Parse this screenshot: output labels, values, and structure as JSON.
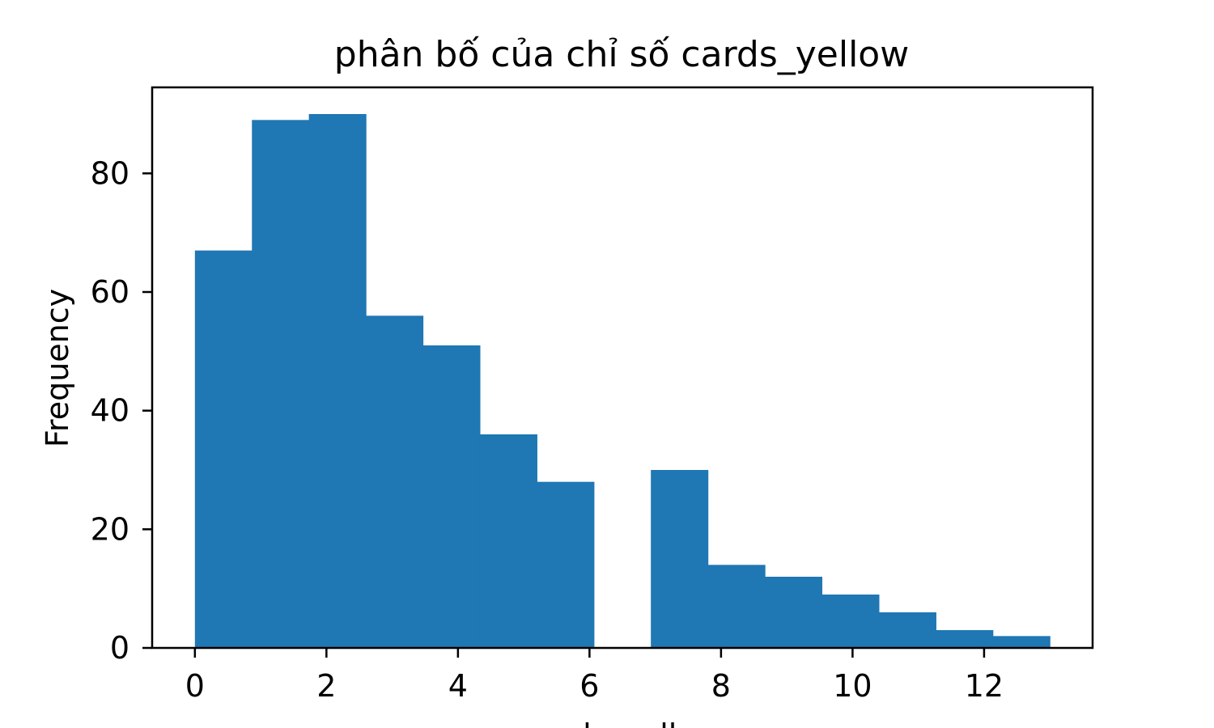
{
  "chart_data": {
    "type": "bar",
    "title": "phân bố của chỉ số cards_yellow",
    "xlabel": "cards_yellow",
    "ylabel": "Frequency",
    "bin_edges": [
      0,
      0.867,
      1.733,
      2.6,
      3.467,
      4.333,
      5.2,
      6.067,
      6.933,
      7.8,
      8.667,
      9.533,
      10.4,
      11.267,
      12.133,
      13
    ],
    "values": [
      67,
      89,
      90,
      56,
      51,
      36,
      28,
      0,
      30,
      14,
      12,
      9,
      6,
      3,
      2
    ],
    "xlim": [
      -0.65,
      13.65
    ],
    "ylim": [
      0,
      94.5
    ],
    "x_ticks": [
      0,
      2,
      4,
      6,
      8,
      10,
      12
    ],
    "x_tick_labels": [
      "0",
      "2",
      "4",
      "6",
      "8",
      "10",
      "12"
    ],
    "y_ticks": [
      0,
      20,
      40,
      60,
      80
    ],
    "y_tick_labels": [
      "0",
      "20",
      "40",
      "60",
      "80"
    ],
    "grid": false,
    "legend": "none",
    "bar_color": "#1f77b4"
  }
}
